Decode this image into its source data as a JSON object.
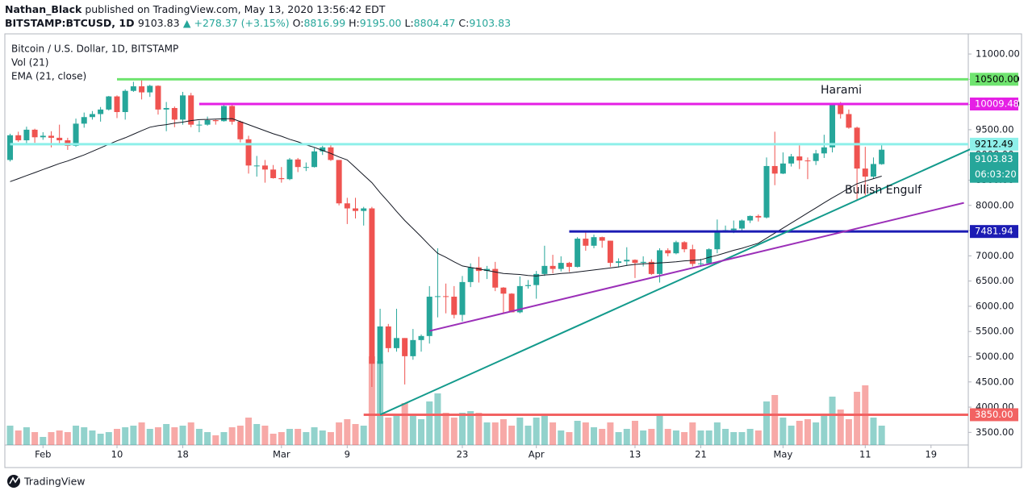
{
  "header": {
    "author": "Nathan_Black",
    "published": "published on TradingView.com, May 13, 2020 13:56:42 EDT",
    "symbol": "BITSTAMP:BTCUSD, 1D",
    "price": "9103.83",
    "change": "▲ +278.37 (+3.15%)",
    "ohlc": [
      {
        "key": "O:",
        "value": "8816.99"
      },
      {
        "key": "H:",
        "value": "9195.00"
      },
      {
        "key": "L:",
        "value": "8804.47"
      },
      {
        "key": "C:",
        "value": "9103.83"
      }
    ]
  },
  "footer": {
    "brand": "TradingView"
  },
  "chart_data": {
    "type": "candlestick",
    "title": "Bitcoin / U.S. Dollar, 1D, BITSTAMP",
    "indicators": [
      "Vol (21)",
      "EMA (21, close)"
    ],
    "up_color": "#26a69a",
    "down_color": "#ef5350",
    "ema_color": "#131722",
    "grid": false,
    "x": [
      "2020-01-28",
      "2020-01-29",
      "2020-01-30",
      "2020-01-31",
      "2020-02-01",
      "2020-02-02",
      "2020-02-03",
      "2020-02-04",
      "2020-02-05",
      "2020-02-06",
      "2020-02-07",
      "2020-02-08",
      "2020-02-09",
      "2020-02-10",
      "2020-02-11",
      "2020-02-12",
      "2020-02-13",
      "2020-02-14",
      "2020-02-15",
      "2020-02-16",
      "2020-02-17",
      "2020-02-18",
      "2020-02-19",
      "2020-02-20",
      "2020-02-21",
      "2020-02-22",
      "2020-02-23",
      "2020-02-24",
      "2020-02-25",
      "2020-02-26",
      "2020-02-27",
      "2020-02-28",
      "2020-02-29",
      "2020-03-01",
      "2020-03-02",
      "2020-03-03",
      "2020-03-04",
      "2020-03-05",
      "2020-03-06",
      "2020-03-07",
      "2020-03-08",
      "2020-03-09",
      "2020-03-10",
      "2020-03-11",
      "2020-03-12",
      "2020-03-13",
      "2020-03-14",
      "2020-03-15",
      "2020-03-16",
      "2020-03-17",
      "2020-03-18",
      "2020-03-19",
      "2020-03-20",
      "2020-03-21",
      "2020-03-22",
      "2020-03-23",
      "2020-03-24",
      "2020-03-25",
      "2020-03-26",
      "2020-03-27",
      "2020-03-28",
      "2020-03-29",
      "2020-03-30",
      "2020-03-31",
      "2020-04-01",
      "2020-04-02",
      "2020-04-03",
      "2020-04-04",
      "2020-04-05",
      "2020-04-06",
      "2020-04-07",
      "2020-04-08",
      "2020-04-09",
      "2020-04-10",
      "2020-04-11",
      "2020-04-12",
      "2020-04-13",
      "2020-04-14",
      "2020-04-15",
      "2020-04-16",
      "2020-04-17",
      "2020-04-18",
      "2020-04-19",
      "2020-04-20",
      "2020-04-21",
      "2020-04-22",
      "2020-04-23",
      "2020-04-24",
      "2020-04-25",
      "2020-04-26",
      "2020-04-27",
      "2020-04-28",
      "2020-04-29",
      "2020-04-30",
      "2020-05-01",
      "2020-05-02",
      "2020-05-03",
      "2020-05-04",
      "2020-05-05",
      "2020-05-06",
      "2020-05-07",
      "2020-05-08",
      "2020-05-09",
      "2020-05-10",
      "2020-05-11",
      "2020-05-12",
      "2020-05-13"
    ],
    "open": [
      8900,
      9390,
      9290,
      9500,
      9350,
      9380,
      9340,
      9290,
      9180,
      9620,
      9750,
      9810,
      9900,
      10160,
      9850,
      10270,
      10360,
      10240,
      10370,
      9900,
      9930,
      9700,
      10180,
      9600,
      9600,
      9690,
      9670,
      9970,
      9660,
      9310,
      8790,
      8790,
      8710,
      8540,
      8520,
      8910,
      8760,
      8760,
      9070,
      9150,
      8900,
      8040,
      7940,
      7890,
      7940,
      4860,
      5600,
      5170,
      5370,
      5010,
      5330,
      5410,
      6190,
      6200,
      6190,
      5830,
      6480,
      6770,
      6700,
      6740,
      6370,
      6250,
      5880,
      6400,
      6420,
      6640,
      6800,
      6740,
      6860,
      6780,
      7340,
      7200,
      7370,
      7300,
      6860,
      6890,
      6920,
      6860,
      6880,
      6640,
      7110,
      7050,
      7270,
      7130,
      6840,
      6850,
      7130,
      7490,
      7510,
      7540,
      7700,
      7790,
      7760,
      8780,
      8630,
      8830,
      8970,
      8890,
      8880,
      9030,
      9150,
      9990,
      9810,
      9540,
      8730,
      8570,
      8816.99
    ],
    "high": [
      9420,
      9460,
      9560,
      9520,
      9450,
      9470,
      9600,
      9340,
      9720,
      9840,
      9870,
      9950,
      10170,
      10180,
      10300,
      10450,
      10520,
      10390,
      10380,
      10050,
      9960,
      10250,
      10230,
      9680,
      9760,
      9700,
      9990,
      10030,
      9680,
      9380,
      8980,
      8900,
      8800,
      8760,
      8940,
      8940,
      8850,
      9140,
      9180,
      9200,
      8900,
      8150,
      8150,
      7970,
      7970,
      5950,
      5650,
      5950,
      5370,
      5550,
      5440,
      6400,
      7150,
      6450,
      6400,
      6600,
      6850,
      6980,
      6800,
      6880,
      6380,
      6260,
      6590,
      6520,
      6700,
      7200,
      7020,
      6990,
      6880,
      7370,
      7460,
      7420,
      7380,
      7300,
      6950,
      7170,
      6930,
      6990,
      6930,
      7150,
      7150,
      7300,
      7290,
      7220,
      6940,
      7150,
      7720,
      7600,
      7700,
      7720,
      7800,
      7820,
      8950,
      9460,
      9050,
      9020,
      9190,
      8950,
      9100,
      9400,
      10000,
      10050,
      9900,
      9560,
      9160,
      8950,
      9195
    ],
    "low": [
      8870,
      9260,
      9220,
      9240,
      9300,
      9150,
      9230,
      9100,
      9160,
      9540,
      9700,
      9660,
      9880,
      9730,
      9700,
      10250,
      10100,
      10150,
      9800,
      9470,
      9550,
      9600,
      9550,
      9450,
      9580,
      9600,
      9660,
      9600,
      9250,
      8630,
      8570,
      8450,
      8530,
      8450,
      8500,
      8660,
      8680,
      8750,
      9000,
      8880,
      8000,
      7630,
      7740,
      7600,
      4400,
      3850,
      5090,
      5100,
      4450,
      4940,
      5100,
      5260,
      5780,
      5860,
      5760,
      5700,
      6380,
      6470,
      6540,
      6300,
      5850,
      5880,
      5860,
      6350,
      6150,
      6600,
      6650,
      6690,
      6680,
      6770,
      7100,
      7150,
      7160,
      6780,
      6770,
      6800,
      6560,
      6790,
      6620,
      6470,
      6990,
      7030,
      7070,
      6790,
      6780,
      6840,
      7050,
      7460,
      7450,
      7500,
      7650,
      7680,
      7740,
      8400,
      8620,
      8770,
      8720,
      8520,
      8800,
      8940,
      9050,
      9720,
      9520,
      8100,
      8200,
      8530,
      8804.47
    ],
    "close": [
      9390,
      9290,
      9500,
      9350,
      9380,
      9340,
      9290,
      9180,
      9620,
      9750,
      9810,
      9900,
      10160,
      9850,
      10270,
      10360,
      10240,
      10370,
      9900,
      9930,
      9700,
      10180,
      9600,
      9600,
      9690,
      9670,
      9970,
      9660,
      9310,
      8790,
      8790,
      8710,
      8540,
      8520,
      8910,
      8760,
      8760,
      9070,
      9150,
      8900,
      8040,
      7940,
      7890,
      7940,
      4860,
      5600,
      5170,
      5370,
      5010,
      5330,
      5410,
      6190,
      6200,
      6190,
      5830,
      6480,
      6770,
      6700,
      6740,
      6370,
      6250,
      5880,
      6400,
      6420,
      6640,
      6800,
      6740,
      6860,
      6780,
      7340,
      7200,
      7370,
      7300,
      6860,
      6890,
      6920,
      6860,
      6880,
      6640,
      7110,
      7050,
      7270,
      7130,
      6840,
      6850,
      7130,
      7490,
      7510,
      7540,
      7700,
      7790,
      7760,
      8780,
      8630,
      8830,
      8970,
      8890,
      8880,
      9030,
      9150,
      9990,
      9810,
      9540,
      8730,
      8570,
      8820,
      9103.83
    ],
    "volume": [
      12000,
      9000,
      11000,
      8000,
      5000,
      8000,
      9000,
      8000,
      12000,
      11000,
      9000,
      7000,
      8000,
      10000,
      11000,
      12000,
      14000,
      10000,
      11000,
      13000,
      11000,
      12000,
      14000,
      10000,
      8000,
      6000,
      8000,
      11000,
      12000,
      17000,
      13000,
      12000,
      7000,
      8000,
      10000,
      10000,
      8000,
      11000,
      9000,
      8000,
      14000,
      16000,
      13000,
      12000,
      55000,
      52000,
      17000,
      18000,
      26000,
      19000,
      16000,
      27000,
      32000,
      20000,
      17000,
      20000,
      21000,
      20000,
      14000,
      14000,
      16000,
      12000,
      17000,
      12000,
      17000,
      19000,
      14000,
      9000,
      8000,
      15000,
      14000,
      11000,
      10000,
      14000,
      8000,
      10000,
      15000,
      9000,
      10000,
      18000,
      10000,
      9000,
      8000,
      14000,
      9000,
      9000,
      14000,
      10000,
      8000,
      8000,
      10000,
      9000,
      27000,
      31000,
      17000,
      12000,
      15000,
      16000,
      14000,
      18000,
      30000,
      22000,
      16000,
      33000,
      37000,
      17000,
      12000
    ],
    "ema": [
      8470,
      8530,
      8590,
      8650,
      8710,
      8770,
      8830,
      8880,
      8940,
      9000,
      9070,
      9140,
      9210,
      9280,
      9340,
      9410,
      9480,
      9550,
      9580,
      9600,
      9630,
      9650,
      9680,
      9700,
      9705,
      9710,
      9715,
      9720,
      9660,
      9600,
      9540,
      9480,
      9420,
      9370,
      9310,
      9260,
      9200,
      9150,
      9090,
      9030,
      8960,
      8900,
      8750,
      8600,
      8450,
      8250,
      8070,
      7880,
      7700,
      7540,
      7380,
      7210,
      7050,
      6970,
      6880,
      6800,
      6770,
      6740,
      6710,
      6680,
      6650,
      6640,
      6630,
      6610,
      6600,
      6620,
      6630,
      6650,
      6660,
      6680,
      6700,
      6720,
      6740,
      6760,
      6780,
      6810,
      6830,
      6840,
      6850,
      6860,
      6870,
      6880,
      6900,
      6910,
      6920,
      6970,
      7010,
      7060,
      7110,
      7150,
      7200,
      7250,
      7350,
      7450,
      7550,
      7650,
      7750,
      7850,
      7950,
      8050,
      8150,
      8240,
      8340,
      8430,
      8480,
      8530,
      8580
    ],
    "ylim": [
      3250,
      11400
    ],
    "yticks": [
      {
        "value": 3500,
        "label": "3500.00"
      },
      {
        "value": 4000,
        "label": "4000.00"
      },
      {
        "value": 4500,
        "label": "4500.00"
      },
      {
        "value": 5000,
        "label": "5000.00"
      },
      {
        "value": 5500,
        "label": "5500.00"
      },
      {
        "value": 6000,
        "label": "6000.00"
      },
      {
        "value": 6500,
        "label": "6500.00"
      },
      {
        "value": 7000,
        "label": "7000.00"
      },
      {
        "value": 7500,
        "label": "7500.00"
      },
      {
        "value": 8000,
        "label": "8000.00"
      },
      {
        "value": 8500,
        "label": "8500.00"
      },
      {
        "value": 9000,
        "label": "9000.00"
      },
      {
        "value": 9500,
        "label": "9500.00"
      },
      {
        "value": 10000,
        "label": "10000.00"
      },
      {
        "value": 10500,
        "label": "10500.00"
      },
      {
        "value": 11000,
        "label": "11000.00"
      }
    ],
    "xticks": [
      {
        "value": "2020-02-01",
        "label": "Feb"
      },
      {
        "value": "2020-02-10",
        "label": "10"
      },
      {
        "value": "2020-02-18",
        "label": "18"
      },
      {
        "value": "2020-03-01",
        "label": "Mar"
      },
      {
        "value": "2020-03-09",
        "label": "9"
      },
      {
        "value": "2020-03-23",
        "label": "23"
      },
      {
        "value": "2020-04-01",
        "label": "Apr"
      },
      {
        "value": "2020-04-13",
        "label": "13"
      },
      {
        "value": "2020-04-21",
        "label": "21"
      },
      {
        "value": "2020-05-01",
        "label": "May"
      },
      {
        "value": "2020-05-11",
        "label": "11"
      },
      {
        "value": "2020-05-19",
        "label": "19"
      }
    ],
    "levels": [
      {
        "value": 10500,
        "label": "10500.00",
        "color": "#6fe46f",
        "text_color": "#000000",
        "start": "2020-02-10"
      },
      {
        "value": 10009.48,
        "label": "10009.48",
        "color": "#e51fe5",
        "text_color": "#ffffff",
        "start": "2020-02-20"
      },
      {
        "value": 9212.49,
        "label": "9212.49",
        "color": "#8ef0ea",
        "text_color": "#000000",
        "start": "2020-01-28"
      },
      {
        "value": 7481.94,
        "label": "7481.94",
        "color": "#1c1cb4",
        "text_color": "#ffffff",
        "start": "2020-04-05"
      },
      {
        "value": 3850,
        "label": "3850.00",
        "color": "#f26262",
        "text_color": "#ffffff",
        "start": "2020-03-11"
      }
    ],
    "trendlines": [
      {
        "x": [
          "2020-03-13",
          "2020-05-24"
        ],
        "values": [
          3850,
          9130
        ],
        "color": "#139a8c"
      },
      {
        "x": [
          "2020-03-19",
          "2020-05-23"
        ],
        "values": [
          5510,
          8050
        ],
        "color": "#9b2fb8"
      }
    ],
    "last_price": {
      "value": 9103.83,
      "label": "9103.83",
      "countdown": "06:03:20"
    },
    "annotations": [
      "Harami",
      "Bullish Engulf"
    ]
  }
}
